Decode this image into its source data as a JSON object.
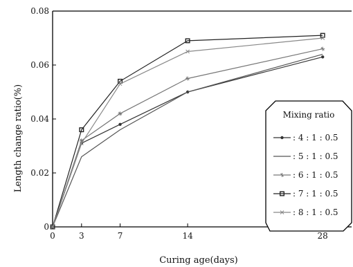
{
  "chart_data": {
    "type": "line",
    "title": "",
    "xlabel": "Curing age(days)",
    "ylabel": "Length change ratio(%)",
    "xlim": [
      0,
      31
    ],
    "ylim": [
      0,
      0.08
    ],
    "x_ticks": [
      "0",
      "3",
      "7",
      "14",
      "28"
    ],
    "y_ticks": [
      "0",
      "0.02",
      "0.04",
      "0.06",
      "0.08"
    ],
    "grid": false,
    "legend_title": "Mixing ratio",
    "legend_position": "right",
    "x": [
      0,
      3,
      7,
      14,
      28
    ],
    "series": [
      {
        "name": ": 4 : 1 : 0.5",
        "marker": "dot",
        "color": "#333333",
        "values": [
          0,
          0.031,
          0.038,
          0.05,
          0.063
        ]
      },
      {
        "name": ": 5 : 1 : 0.5",
        "marker": "none",
        "color": "#555555",
        "values": [
          0,
          0.026,
          0.036,
          0.05,
          0.064
        ]
      },
      {
        "name": ": 6 : 1 : 0.5",
        "marker": "star",
        "color": "#777777",
        "values": [
          0,
          0.032,
          0.042,
          0.055,
          0.066
        ]
      },
      {
        "name": ": 7 : 1 : 0.5",
        "marker": "square",
        "color": "#222222",
        "values": [
          0,
          0.036,
          0.054,
          0.069,
          0.071
        ]
      },
      {
        "name": ": 8 : 1 : 0.5",
        "marker": "cross",
        "color": "#888888",
        "values": [
          0,
          0.031,
          0.053,
          0.065,
          0.07
        ]
      }
    ]
  }
}
